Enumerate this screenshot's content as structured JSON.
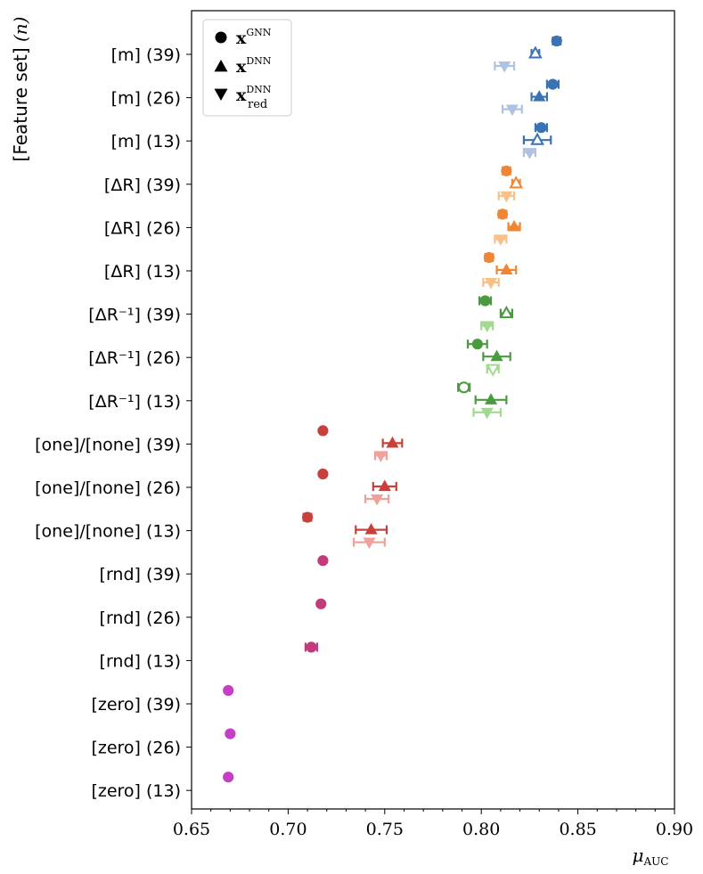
{
  "chart_data": {
    "type": "scatter",
    "title": "",
    "xlabel": "μ_AUC",
    "xlabel_main": "μ",
    "xlabel_sub": "AUC",
    "ylabel": "[Feature set] (n)",
    "ylabel_main": "[Feature set] ",
    "ylabel_var": "(n)",
    "xlim": [
      0.65,
      0.9
    ],
    "xticks": [
      0.65,
      0.7,
      0.75,
      0.8,
      0.85,
      0.9
    ],
    "xtick_labels": [
      "0.65",
      "0.70",
      "0.75",
      "0.80",
      "0.85",
      "0.90"
    ],
    "grid": false,
    "legend_position": "top-left",
    "legend": [
      {
        "key": "gnn",
        "marker": "circle",
        "main": "x",
        "sup": "GNN",
        "sub": ""
      },
      {
        "key": "dnn",
        "marker": "triangle-up",
        "main": "x",
        "sup": "DNN",
        "sub": ""
      },
      {
        "key": "dnn_red",
        "marker": "triangle-down",
        "main": "x",
        "sup": "DNN",
        "sub": "red"
      }
    ],
    "categories": [
      {
        "label": "[m] (39)",
        "color": "#3a72b3",
        "light": "#aec3e2",
        "gnn": {
          "v": 0.839,
          "e": 0.002
        },
        "dnn": {
          "v": 0.828,
          "e": 0.002,
          "hollow": true
        },
        "dnn_red": {
          "v": 0.812,
          "e": 0.005
        }
      },
      {
        "label": "[m] (26)",
        "color": "#3a72b3",
        "light": "#aec3e2",
        "gnn": {
          "v": 0.837,
          "e": 0.003
        },
        "dnn": {
          "v": 0.83,
          "e": 0.004
        },
        "dnn_red": {
          "v": 0.816,
          "e": 0.005
        }
      },
      {
        "label": "[m] (13)",
        "color": "#3a72b3",
        "light": "#aec3e2",
        "gnn": {
          "v": 0.831,
          "e": 0.003
        },
        "dnn": {
          "v": 0.829,
          "e": 0.007,
          "hollow": true
        },
        "dnn_red": {
          "v": 0.825,
          "e": 0.003
        }
      },
      {
        "label": "[ΔR] (39)",
        "color": "#ef8636",
        "light": "#f6c187",
        "gnn": {
          "v": 0.813,
          "e": 0.002
        },
        "dnn": {
          "v": 0.818,
          "e": 0.002,
          "hollow": true
        },
        "dnn_red": {
          "v": 0.813,
          "e": 0.004
        }
      },
      {
        "label": "[ΔR] (26)",
        "color": "#ef8636",
        "light": "#f6c187",
        "gnn": {
          "v": 0.811,
          "e": 0.002
        },
        "dnn": {
          "v": 0.817,
          "e": 0.003
        },
        "dnn_red": {
          "v": 0.81,
          "e": 0.003
        }
      },
      {
        "label": "[ΔR] (13)",
        "color": "#ef8636",
        "light": "#f6c187",
        "gnn": {
          "v": 0.804,
          "e": 0.002
        },
        "dnn": {
          "v": 0.813,
          "e": 0.005
        },
        "dnn_red": {
          "v": 0.805,
          "e": 0.004
        }
      },
      {
        "label": "[ΔR⁻¹] (39)",
        "color": "#4a9b3f",
        "light": "#a3d88f",
        "gnn": {
          "v": 0.802,
          "e": 0.003
        },
        "dnn": {
          "v": 0.813,
          "e": 0.003,
          "hollow": true
        },
        "dnn_red": {
          "v": 0.803,
          "e": 0.003
        }
      },
      {
        "label": "[ΔR⁻¹] (26)",
        "color": "#4a9b3f",
        "light": "#a3d88f",
        "gnn": {
          "v": 0.798,
          "e": 0.005
        },
        "dnn": {
          "v": 0.808,
          "e": 0.007
        },
        "dnn_red": {
          "v": 0.806,
          "e": 0.003,
          "hollow": true
        }
      },
      {
        "label": "[ΔR⁻¹] (13)",
        "color": "#4a9b3f",
        "light": "#a3d88f",
        "gnn": {
          "v": 0.791,
          "e": 0.003,
          "hollow": true
        },
        "dnn": {
          "v": 0.805,
          "e": 0.008
        },
        "dnn_red": {
          "v": 0.803,
          "e": 0.007
        }
      },
      {
        "label": "[one]/[none] (39)",
        "color": "#c8403a",
        "light": "#f0a19b",
        "gnn": {
          "v": 0.718,
          "e": 0.0
        },
        "dnn": {
          "v": 0.754,
          "e": 0.005
        },
        "dnn_red": {
          "v": 0.748,
          "e": 0.003
        }
      },
      {
        "label": "[one]/[none] (26)",
        "color": "#c8403a",
        "light": "#f0a19b",
        "gnn": {
          "v": 0.718,
          "e": 0.0
        },
        "dnn": {
          "v": 0.75,
          "e": 0.006
        },
        "dnn_red": {
          "v": 0.746,
          "e": 0.006
        }
      },
      {
        "label": "[one]/[none] (13)",
        "color": "#c8403a",
        "light": "#f0a19b",
        "gnn": {
          "v": 0.71,
          "e": 0.002
        },
        "dnn": {
          "v": 0.743,
          "e": 0.008
        },
        "dnn_red": {
          "v": 0.742,
          "e": 0.008
        }
      },
      {
        "label": "[rnd] (39)",
        "color": "#c23b7a",
        "light": "#e59bbd",
        "gnn": {
          "v": 0.718,
          "e": 0.0
        }
      },
      {
        "label": "[rnd] (26)",
        "color": "#c23b7a",
        "light": "#e59bbd",
        "gnn": {
          "v": 0.717,
          "e": 0.0
        }
      },
      {
        "label": "[rnd] (13)",
        "color": "#c23b7a",
        "light": "#e59bbd",
        "gnn": {
          "v": 0.712,
          "e": 0.003
        }
      },
      {
        "label": "[zero] (39)",
        "color": "#c63fc6",
        "light": "#e6a0e6",
        "gnn": {
          "v": 0.669,
          "e": 0.0
        }
      },
      {
        "label": "[zero] (26)",
        "color": "#c63fc6",
        "light": "#e6a0e6",
        "gnn": {
          "v": 0.67,
          "e": 0.0
        }
      },
      {
        "label": "[zero] (13)",
        "color": "#c63fc6",
        "light": "#e6a0e6",
        "gnn": {
          "v": 0.669,
          "e": 0.0
        }
      }
    ]
  }
}
